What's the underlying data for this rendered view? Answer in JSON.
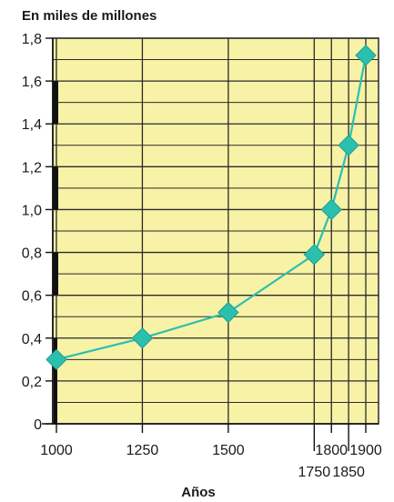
{
  "chart_data": {
    "type": "line",
    "title": "",
    "ylabel": "En miles de millones",
    "xlabel": "Años",
    "x": [
      1000,
      1250,
      1500,
      1750,
      1800,
      1850,
      1900
    ],
    "values": [
      0.3,
      0.4,
      0.52,
      0.79,
      1.0,
      1.3,
      1.72
    ],
    "x_tick_labels": [
      "1000",
      "1250",
      "1500",
      "1750",
      "1800",
      "1850",
      "1900"
    ],
    "y_ticks": [
      0,
      0.2,
      0.4,
      0.6,
      0.8,
      1.0,
      1.2,
      1.4,
      1.6,
      1.8
    ],
    "y_tick_labels": [
      "0",
      "0,2",
      "0,4",
      "0,6",
      "0,8",
      "1,0",
      "1,2",
      "1,4",
      "1,6",
      "1,8"
    ],
    "ylim": [
      0,
      1.8
    ],
    "grid": true,
    "colors": {
      "plot_background": "#f7f2a6",
      "grid": "#2a2a2a",
      "line": "#2bbfae",
      "marker": "#2bbfae",
      "axis_band": "#111111"
    }
  }
}
